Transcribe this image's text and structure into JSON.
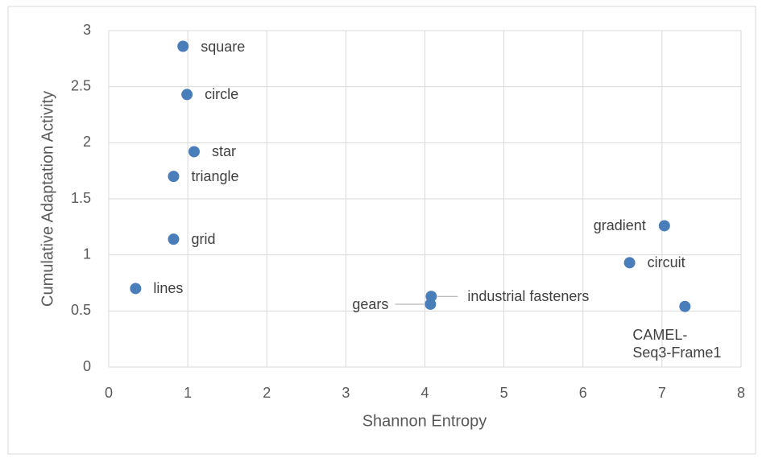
{
  "chart_data": {
    "type": "scatter",
    "x_label": "Shannon Entropy",
    "y_label": "Cumulative Adaptation Activity",
    "labels": [
      "square",
      "circle",
      "star",
      "triangle",
      "grid",
      "lines",
      "industrial fasteners",
      "gears",
      "gradient",
      "circuit",
      "CAMEL-Seq3-Frame1"
    ],
    "x": [
      0.94,
      0.99,
      1.08,
      0.82,
      0.82,
      0.34,
      4.08,
      4.07,
      7.03,
      6.59,
      7.29
    ],
    "values": [
      2.86,
      2.43,
      1.92,
      1.7,
      1.14,
      0.7,
      0.63,
      0.56,
      1.26,
      0.93,
      0.54
    ],
    "color": "#4a7ebb",
    "xlim": [
      0,
      8
    ],
    "xticks": [
      0,
      1,
      2,
      3,
      4,
      5,
      6,
      7,
      8
    ],
    "ylim": [
      0,
      3
    ],
    "yticks": [
      0,
      0.5,
      1,
      1.5,
      2,
      2.5,
      3
    ],
    "grid": true
  }
}
